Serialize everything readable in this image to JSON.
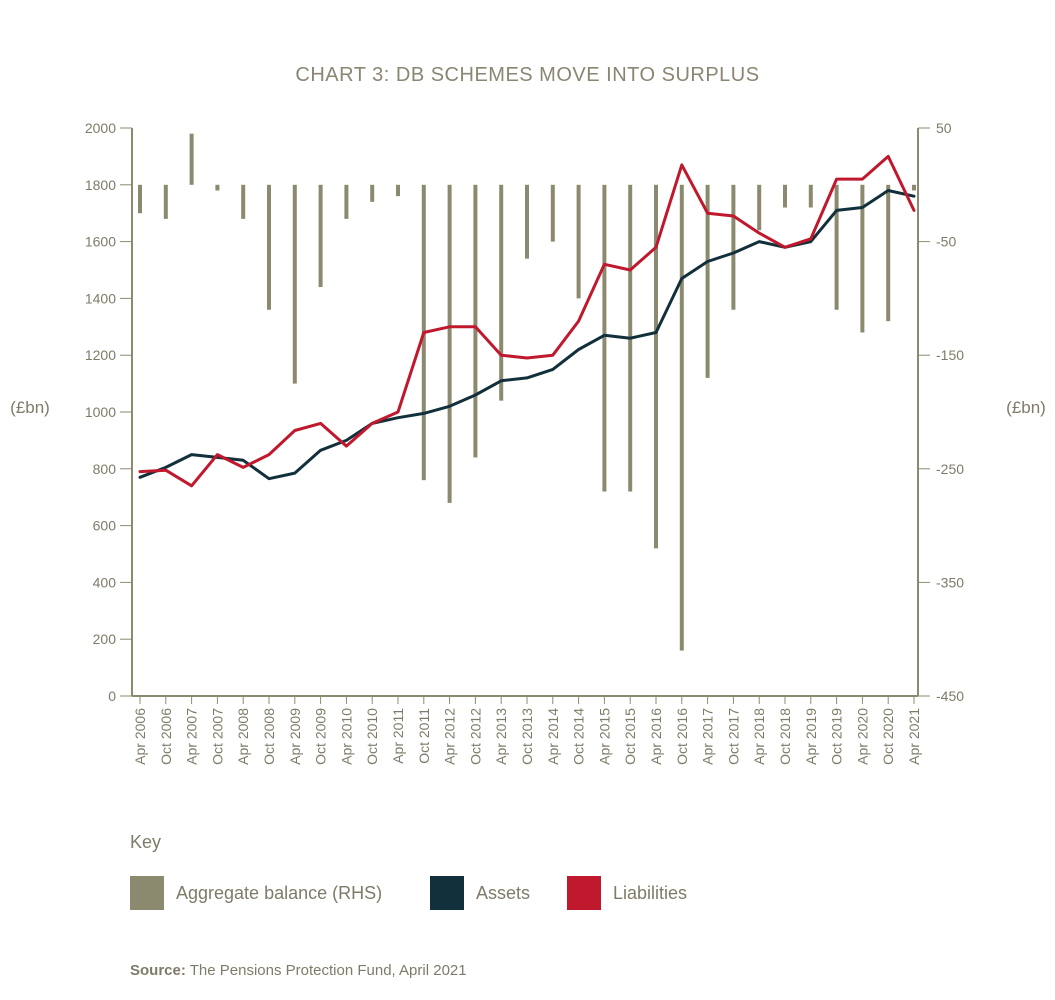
{
  "title": "CHART 3: DB SCHEMES MOVE INTO SURPLUS",
  "key": {
    "title": "Key",
    "items": [
      {
        "label": "Aggregate balance (RHS)",
        "color": "#8c8a6e"
      },
      {
        "label": "Assets",
        "color": "#12303b"
      },
      {
        "label": "Liabilities",
        "color": "#c0182d"
      }
    ]
  },
  "source": {
    "prefix": "Source:",
    "text": "The Pensions Protection Fund, April 2021"
  },
  "chart_data": {
    "type": "bar+line",
    "title": "CHART 3: DB SCHEMES MOVE INTO SURPLUS",
    "ylabel_left": "(£bn)",
    "ylabel_right": "(£bn)",
    "ylim_left": [
      0,
      2000
    ],
    "ylim_right": [
      -450,
      50
    ],
    "yticks_left": [
      0,
      200,
      400,
      600,
      800,
      1000,
      1200,
      1400,
      1600,
      1800,
      2000
    ],
    "yticks_right": [
      -450,
      -350,
      -250,
      -150,
      -50,
      50
    ],
    "x_labels": [
      "Apr 2006",
      "Oct 2006",
      "Apr 2007",
      "Oct 2007",
      "Apr 2008",
      "Oct 2008",
      "Apr 2009",
      "Oct 2009",
      "Apr 2010",
      "Oct 2010",
      "Apr 2011",
      "Oct 2011",
      "Apr 2012",
      "Oct 2012",
      "Apr 2013",
      "Oct 2013",
      "Apr 2014",
      "Oct 2014",
      "Apr 2015",
      "Oct 2015",
      "Apr 2016",
      "Oct 2016",
      "Apr 2017",
      "Oct 2017",
      "Apr 2018",
      "Oct 2018",
      "Apr 2019",
      "Oct 2019",
      "Apr 2020",
      "Oct 2020",
      "Apr 2021"
    ],
    "grid": false,
    "series": [
      {
        "name": "Assets",
        "axis": "left",
        "type": "line",
        "color": "#12303b",
        "values": [
          770,
          805,
          850,
          840,
          830,
          765,
          785,
          865,
          900,
          960,
          980,
          995,
          1020,
          1060,
          1110,
          1120,
          1150,
          1220,
          1270,
          1260,
          1280,
          1470,
          1530,
          1560,
          1600,
          1580,
          1600,
          1710,
          1720,
          1780,
          1760
        ]
      },
      {
        "name": "Liabilities",
        "axis": "left",
        "type": "line",
        "color": "#c0182d",
        "values": [
          790,
          795,
          740,
          850,
          805,
          850,
          935,
          960,
          880,
          960,
          1000,
          1280,
          1300,
          1300,
          1200,
          1190,
          1200,
          1320,
          1520,
          1500,
          1580,
          1870,
          1700,
          1690,
          1630,
          1580,
          1610,
          1820,
          1820,
          1900,
          1710
        ]
      },
      {
        "name": "Aggregate balance (RHS)",
        "axis": "right",
        "type": "bar",
        "color": "#8c8a6e",
        "values": [
          -25,
          -30,
          45,
          -5,
          -30,
          -110,
          -175,
          -90,
          -30,
          -15,
          -10,
          -260,
          -280,
          -240,
          -190,
          -65,
          -50,
          -100,
          -270,
          -270,
          -320,
          -410,
          -170,
          -110,
          -40,
          -20,
          -20,
          -110,
          -130,
          -120,
          -5
        ]
      }
    ]
  }
}
